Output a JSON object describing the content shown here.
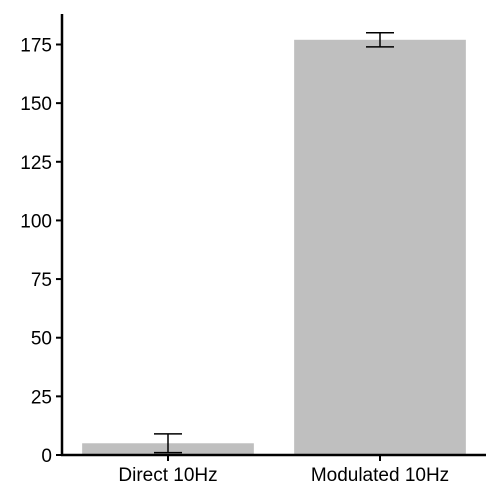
{
  "chart_data": {
    "type": "bar",
    "title": "",
    "xlabel": "",
    "ylabel": "",
    "categories": [
      "Direct 10Hz",
      "Modulated 10Hz"
    ],
    "values": [
      5,
      177
    ],
    "error_low": [
      1,
      174
    ],
    "error_high": [
      9,
      180
    ],
    "ylim": [
      0,
      188
    ],
    "yticks": [
      0,
      25,
      50,
      75,
      100,
      125,
      150,
      175
    ],
    "grid": false,
    "legend": "none",
    "bar_color": "#bfbfbf",
    "axis_color": "#000000"
  }
}
